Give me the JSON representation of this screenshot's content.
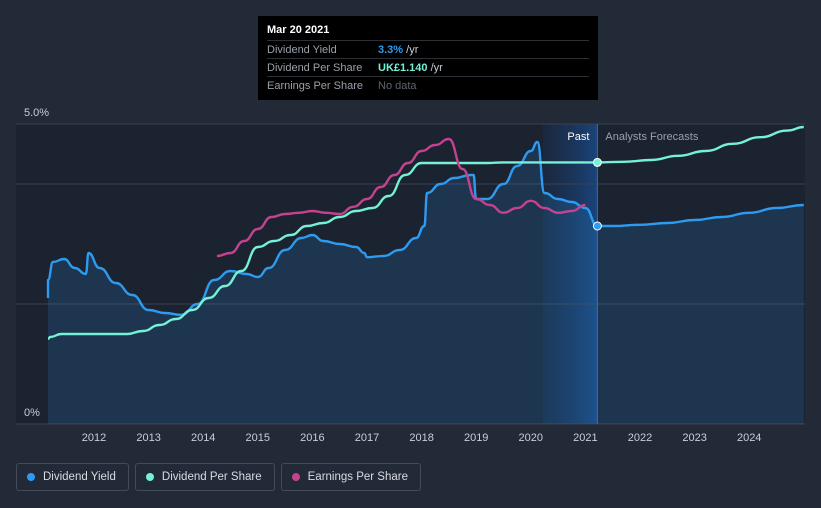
{
  "chart_data": {
    "type": "line",
    "y_axis": {
      "ticks": [
        {
          "value": 5.0,
          "label": "5.0%"
        },
        {
          "value": 0,
          "label": "0%"
        }
      ],
      "ylim": [
        0,
        5.0
      ]
    },
    "x_axis": {
      "ticks": [
        "2012",
        "2013",
        "2014",
        "2015",
        "2016",
        "2017",
        "2018",
        "2019",
        "2020",
        "2021",
        "2022",
        "2023",
        "2024"
      ],
      "xlim": [
        2011.0,
        2025.0
      ]
    },
    "regions": {
      "past_label": "Past",
      "forecast_label": "Analysts Forecasts",
      "divider_x": 2021.22
    },
    "series": [
      {
        "name": "Dividend Yield",
        "color": "#2d9bf0",
        "points": [
          [
            2011.0,
            2.1
          ],
          [
            2011.1,
            2.4
          ],
          [
            2011.25,
            2.7
          ],
          [
            2011.45,
            2.75
          ],
          [
            2011.65,
            2.6
          ],
          [
            2011.85,
            2.5
          ],
          [
            2011.9,
            2.85
          ],
          [
            2012.1,
            2.6
          ],
          [
            2012.4,
            2.35
          ],
          [
            2012.7,
            2.15
          ],
          [
            2013.0,
            1.9
          ],
          [
            2013.3,
            1.85
          ],
          [
            2013.6,
            1.82
          ],
          [
            2013.9,
            2.0
          ],
          [
            2014.2,
            2.4
          ],
          [
            2014.5,
            2.55
          ],
          [
            2014.8,
            2.5
          ],
          [
            2015.0,
            2.45
          ],
          [
            2015.2,
            2.6
          ],
          [
            2015.5,
            2.9
          ],
          [
            2015.8,
            3.1
          ],
          [
            2016.0,
            3.15
          ],
          [
            2016.2,
            3.05
          ],
          [
            2016.5,
            3.0
          ],
          [
            2016.8,
            2.95
          ],
          [
            2016.95,
            2.85
          ],
          [
            2017.0,
            2.78
          ],
          [
            2017.3,
            2.8
          ],
          [
            2017.6,
            2.9
          ],
          [
            2017.9,
            3.1
          ],
          [
            2018.05,
            3.3
          ],
          [
            2018.1,
            3.85
          ],
          [
            2018.35,
            4.0
          ],
          [
            2018.6,
            4.1
          ],
          [
            2018.9,
            4.15
          ],
          [
            2018.95,
            4.15
          ],
          [
            2019.0,
            3.75
          ],
          [
            2019.2,
            3.75
          ],
          [
            2019.5,
            4.0
          ],
          [
            2019.75,
            4.3
          ],
          [
            2020.0,
            4.55
          ],
          [
            2020.12,
            4.7
          ],
          [
            2020.25,
            3.85
          ],
          [
            2020.5,
            3.75
          ],
          [
            2020.75,
            3.7
          ],
          [
            2021.0,
            3.6
          ],
          [
            2021.22,
            3.3
          ],
          [
            2021.5,
            3.3
          ],
          [
            2022.0,
            3.32
          ],
          [
            2022.5,
            3.35
          ],
          [
            2023.0,
            3.4
          ],
          [
            2023.5,
            3.45
          ],
          [
            2024.0,
            3.52
          ],
          [
            2024.5,
            3.6
          ],
          [
            2025.0,
            3.65
          ]
        ]
      },
      {
        "name": "Dividend Per Share",
        "color": "#74f1d6",
        "points": [
          [
            2011.0,
            1.42
          ],
          [
            2011.2,
            1.45
          ],
          [
            2011.4,
            1.5
          ],
          [
            2011.6,
            1.5
          ],
          [
            2011.8,
            1.5
          ],
          [
            2012.0,
            1.5
          ],
          [
            2012.3,
            1.5
          ],
          [
            2012.6,
            1.5
          ],
          [
            2012.9,
            1.55
          ],
          [
            2013.2,
            1.65
          ],
          [
            2013.5,
            1.75
          ],
          [
            2013.8,
            1.9
          ],
          [
            2014.1,
            2.1
          ],
          [
            2014.4,
            2.3
          ],
          [
            2014.7,
            2.55
          ],
          [
            2015.0,
            2.95
          ],
          [
            2015.3,
            3.05
          ],
          [
            2015.6,
            3.15
          ],
          [
            2015.9,
            3.3
          ],
          [
            2016.2,
            3.35
          ],
          [
            2016.5,
            3.45
          ],
          [
            2016.8,
            3.55
          ],
          [
            2017.1,
            3.6
          ],
          [
            2017.4,
            3.8
          ],
          [
            2017.7,
            4.15
          ],
          [
            2018.0,
            4.35
          ],
          [
            2018.3,
            4.35
          ],
          [
            2018.6,
            4.35
          ],
          [
            2018.9,
            4.35
          ],
          [
            2019.2,
            4.35
          ],
          [
            2019.5,
            4.36
          ],
          [
            2019.8,
            4.36
          ],
          [
            2020.1,
            4.36
          ],
          [
            2020.4,
            4.36
          ],
          [
            2020.7,
            4.36
          ],
          [
            2021.0,
            4.36
          ],
          [
            2021.22,
            4.36
          ],
          [
            2021.7,
            4.37
          ],
          [
            2022.2,
            4.4
          ],
          [
            2022.7,
            4.47
          ],
          [
            2023.2,
            4.55
          ],
          [
            2023.7,
            4.67
          ],
          [
            2024.2,
            4.78
          ],
          [
            2024.7,
            4.89
          ],
          [
            2025.0,
            4.95
          ]
        ]
      },
      {
        "name": "Earnings Per Share",
        "color": "#c5428e",
        "points": [
          [
            2014.25,
            2.8
          ],
          [
            2014.5,
            2.85
          ],
          [
            2014.75,
            3.05
          ],
          [
            2015.0,
            3.25
          ],
          [
            2015.25,
            3.45
          ],
          [
            2015.5,
            3.5
          ],
          [
            2015.75,
            3.52
          ],
          [
            2016.0,
            3.55
          ],
          [
            2016.25,
            3.52
          ],
          [
            2016.5,
            3.5
          ],
          [
            2016.75,
            3.62
          ],
          [
            2017.0,
            3.75
          ],
          [
            2017.25,
            3.95
          ],
          [
            2017.5,
            4.15
          ],
          [
            2017.75,
            4.35
          ],
          [
            2018.0,
            4.55
          ],
          [
            2018.25,
            4.65
          ],
          [
            2018.5,
            4.75
          ],
          [
            2018.75,
            4.25
          ],
          [
            2019.0,
            3.75
          ],
          [
            2019.25,
            3.65
          ],
          [
            2019.5,
            3.52
          ],
          [
            2019.75,
            3.6
          ],
          [
            2020.0,
            3.72
          ],
          [
            2020.25,
            3.6
          ],
          [
            2020.5,
            3.52
          ],
          [
            2020.75,
            3.55
          ],
          [
            2021.0,
            3.65
          ]
        ]
      }
    ],
    "markers": [
      {
        "series": "Dividend Yield",
        "x": 2021.22,
        "y": 3.3
      },
      {
        "series": "Dividend Per Share",
        "x": 2021.22,
        "y": 4.36
      }
    ]
  },
  "tooltip": {
    "date": "Mar 20 2021",
    "rows": [
      {
        "label": "Dividend Yield",
        "value": "3.3%",
        "unit": " /yr",
        "style": "blue"
      },
      {
        "label": "Dividend Per Share",
        "value": "UK£1.140",
        "unit": " /yr",
        "style": "teal"
      },
      {
        "label": "Earnings Per Share",
        "value": "No data",
        "unit": "",
        "style": "nodata"
      }
    ]
  },
  "legend": [
    {
      "label": "Dividend Yield",
      "color": "#2d9bf0"
    },
    {
      "label": "Dividend Per Share",
      "color": "#74f1d6"
    },
    {
      "label": "Earnings Per Share",
      "color": "#c5428e"
    }
  ]
}
